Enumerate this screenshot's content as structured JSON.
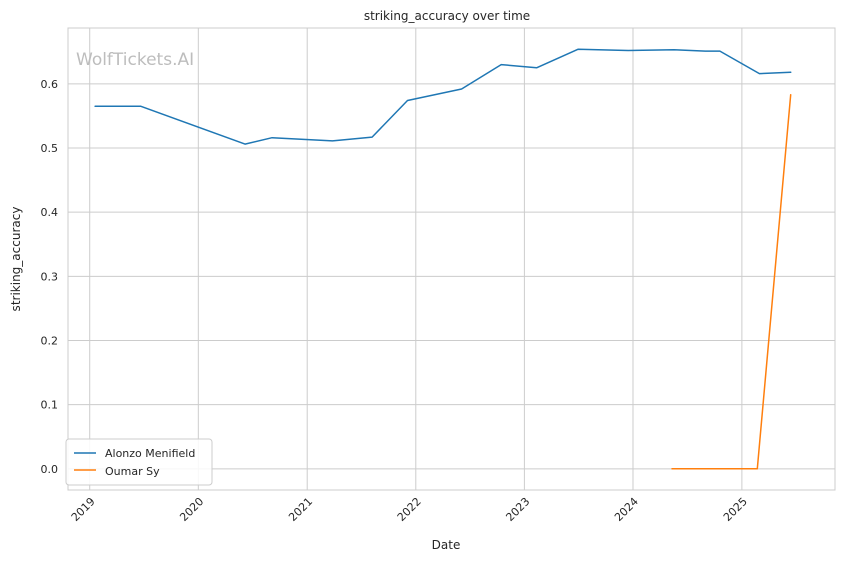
{
  "chart_data": {
    "type": "line",
    "title": "striking_accuracy over time",
    "xlabel": "Date",
    "ylabel": "striking_accuracy",
    "watermark": "WolfTickets.AI",
    "x_tick_labels": [
      "2019",
      "2020",
      "2021",
      "2022",
      "2023",
      "2024",
      "2025"
    ],
    "y_ticks": [
      0.0,
      0.1,
      0.2,
      0.3,
      0.4,
      0.5,
      0.6
    ],
    "y_tick_labels": [
      "0.0",
      "0.1",
      "0.2",
      "0.3",
      "0.4",
      "0.5",
      "0.6"
    ],
    "xlim": [
      "2018-10-20",
      "2025-11-10"
    ],
    "ylim": [
      -0.033,
      0.687
    ],
    "grid": true,
    "legend_position": "lower-left",
    "series": [
      {
        "name": "Alonzo Menifield",
        "color": "#1f77b4",
        "points": [
          {
            "x": "2019-01-19",
            "y": 0.565
          },
          {
            "x": "2019-06-22",
            "y": 0.565
          },
          {
            "x": "2020-06-06",
            "y": 0.506
          },
          {
            "x": "2020-09-05",
            "y": 0.516
          },
          {
            "x": "2021-03-27",
            "y": 0.511
          },
          {
            "x": "2021-08-07",
            "y": 0.517
          },
          {
            "x": "2021-12-04",
            "y": 0.574
          },
          {
            "x": "2022-06-04",
            "y": 0.592
          },
          {
            "x": "2022-10-15",
            "y": 0.63
          },
          {
            "x": "2023-02-11",
            "y": 0.625
          },
          {
            "x": "2023-07-01",
            "y": 0.654
          },
          {
            "x": "2023-12-16",
            "y": 0.652
          },
          {
            "x": "2024-05-18",
            "y": 0.653
          },
          {
            "x": "2024-08-31",
            "y": 0.651
          },
          {
            "x": "2024-10-19",
            "y": 0.651
          },
          {
            "x": "2025-03-01",
            "y": 0.616
          },
          {
            "x": "2025-06-14",
            "y": 0.618
          }
        ]
      },
      {
        "name": "Oumar Sy",
        "color": "#ff7f0e",
        "points": [
          {
            "x": "2024-05-11",
            "y": 0.0
          },
          {
            "x": "2025-02-22",
            "y": 0.0
          },
          {
            "x": "2025-06-14",
            "y": 0.583
          }
        ]
      }
    ]
  }
}
